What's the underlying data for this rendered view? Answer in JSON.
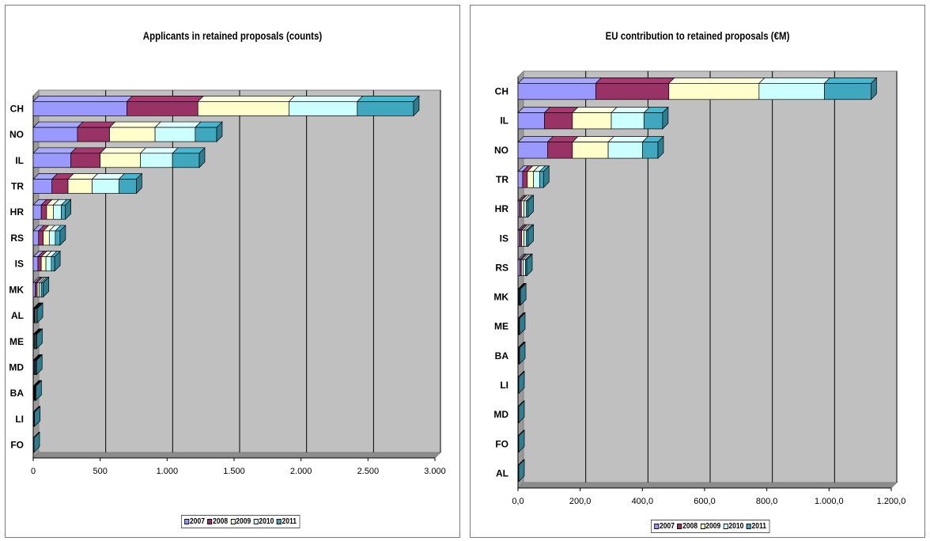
{
  "colors": {
    "2007": "#9999ff",
    "2008": "#993366",
    "2009": "#ffffcc",
    "2010": "#ccffff",
    "2011": "#3fa7be"
  },
  "chart_data": [
    {
      "type": "bar",
      "orientation": "horizontal",
      "stacked": true,
      "title": "Applicants in retained proposals (counts)",
      "categories": [
        "CH",
        "NO",
        "IL",
        "TR",
        "HR",
        "RS",
        "IS",
        "MK",
        "AL",
        "ME",
        "MD",
        "BA",
        "LI",
        "FO"
      ],
      "xlim": [
        0,
        3000
      ],
      "ticks": [
        "0",
        "500",
        "1.000",
        "1.500",
        "2.000",
        "2.500",
        "3.000"
      ],
      "series": [
        {
          "name": "2007",
          "values": [
            700,
            330,
            280,
            140,
            60,
            40,
            35,
            15,
            5,
            5,
            5,
            4,
            2,
            2
          ]
        },
        {
          "name": "2008",
          "values": [
            530,
            240,
            220,
            120,
            40,
            35,
            25,
            15,
            5,
            4,
            4,
            4,
            2,
            1
          ]
        },
        {
          "name": "2009",
          "values": [
            680,
            340,
            300,
            180,
            50,
            45,
            35,
            15,
            6,
            5,
            5,
            4,
            2,
            1
          ]
        },
        {
          "name": "2010",
          "values": [
            510,
            300,
            240,
            200,
            60,
            45,
            40,
            15,
            7,
            6,
            5,
            4,
            2,
            1
          ]
        },
        {
          "name": "2011",
          "values": [
            420,
            160,
            200,
            130,
            30,
            35,
            25,
            15,
            7,
            6,
            6,
            4,
            2,
            1
          ]
        }
      ],
      "legend": [
        "2007",
        "2008",
        "2009",
        "2010",
        "2011"
      ],
      "legend_position": "bottom",
      "grid": true
    },
    {
      "type": "bar",
      "orientation": "horizontal",
      "stacked": true,
      "title": "EU contribution to retained proposals (€M)",
      "categories": [
        "CH",
        "IL",
        "NO",
        "TR",
        "HR",
        "IS",
        "RS",
        "MK",
        "ME",
        "BA",
        "LI",
        "MD",
        "FO",
        "AL"
      ],
      "xlim": [
        0,
        1200
      ],
      "ticks": [
        "0,0",
        "200,0",
        "400,0",
        "600,0",
        "800,0",
        "1.000,0",
        "1.200,0"
      ],
      "series": [
        {
          "name": "2007",
          "values": [
            250,
            85,
            95,
            15,
            5,
            5,
            6,
            2,
            1,
            1,
            0.5,
            0.5,
            0.5,
            0.5
          ]
        },
        {
          "name": "2008",
          "values": [
            235,
            90,
            80,
            15,
            6,
            7,
            5,
            1,
            1,
            1,
            0.5,
            0.5,
            0.5,
            0.5
          ]
        },
        {
          "name": "2009",
          "values": [
            290,
            125,
            115,
            20,
            8,
            7,
            6,
            2,
            1,
            1,
            0.5,
            0.5,
            0.5,
            0.5
          ]
        },
        {
          "name": "2010",
          "values": [
            210,
            105,
            110,
            20,
            8,
            8,
            7,
            2,
            1,
            1,
            0.5,
            0.5,
            0.5,
            0.5
          ]
        },
        {
          "name": "2011",
          "values": [
            150,
            60,
            50,
            12,
            5,
            5,
            4,
            1,
            1,
            1,
            0.5,
            0.5,
            0.5,
            0.5
          ]
        }
      ],
      "legend": [
        "2007",
        "2008",
        "2009",
        "2010",
        "2011"
      ],
      "legend_position": "bottom",
      "grid": true
    }
  ]
}
